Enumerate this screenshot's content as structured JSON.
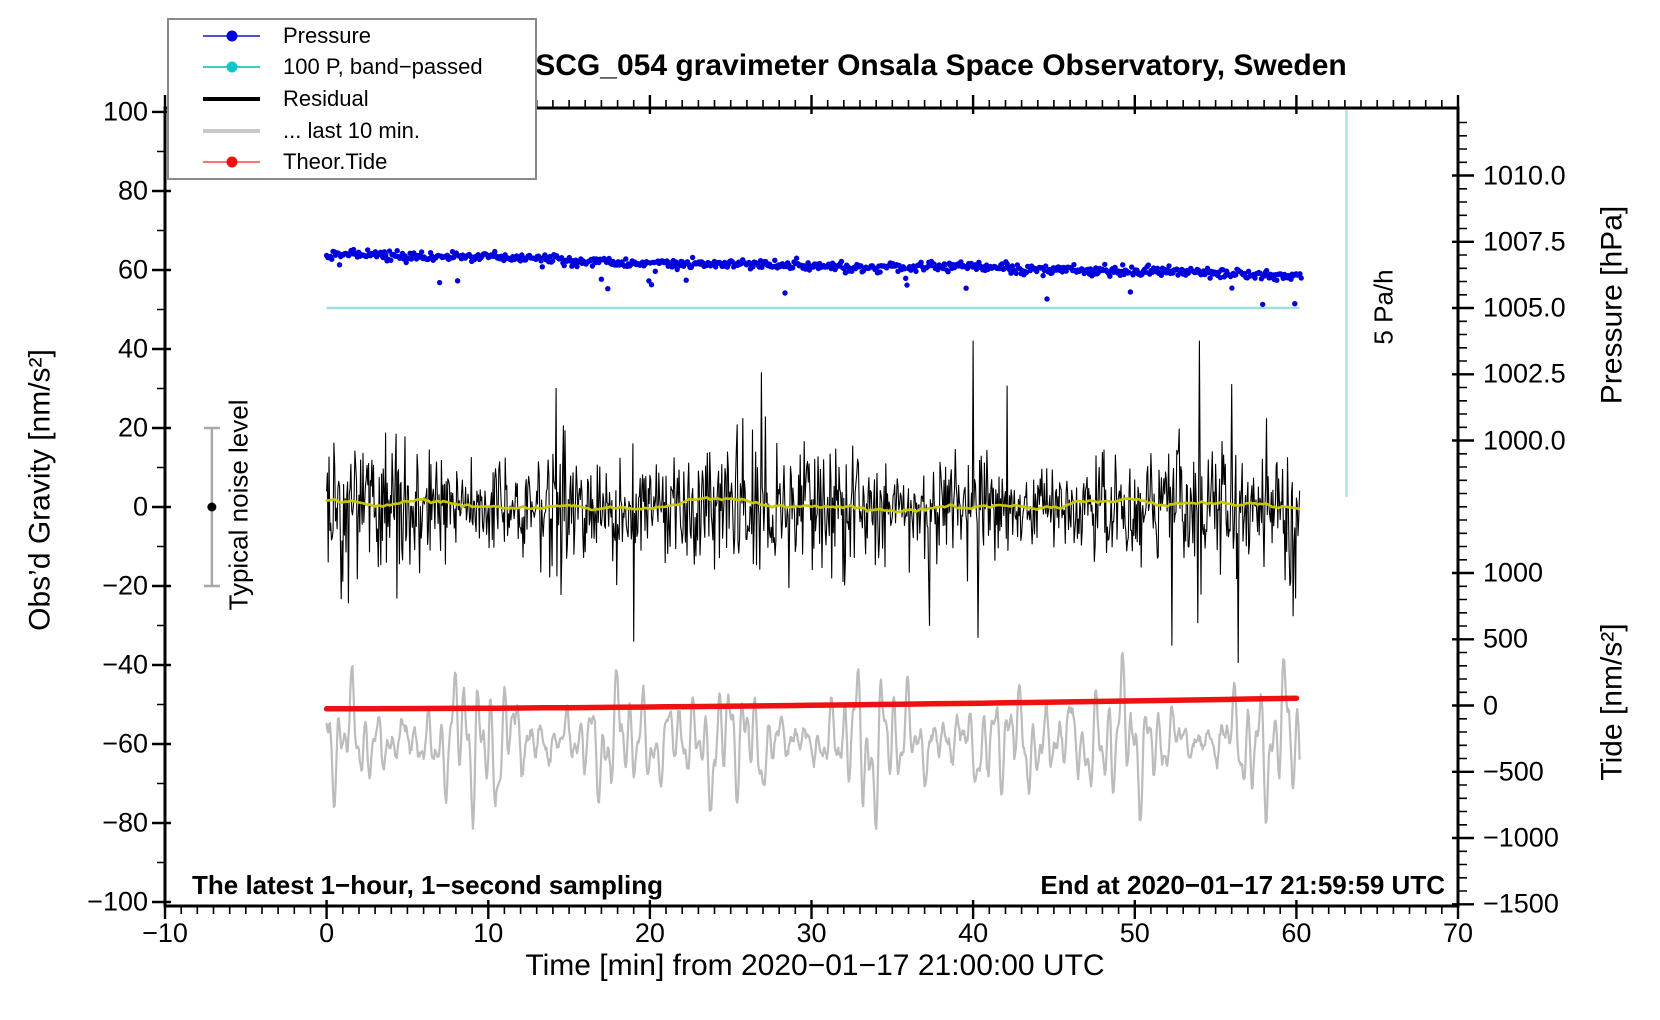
{
  "title": "SCG_054 gravimeter Onsala Space Observatory, Sweden",
  "legend": {
    "items": [
      {
        "label": "Pressure",
        "line_color": "#5050d0",
        "dot_color": "#0000dd",
        "line_width": 2
      },
      {
        "label": "100 P, band−passed",
        "line_color": "#3ecccc",
        "dot_color": "#10c8c8",
        "line_width": 2
      },
      {
        "label": "Residual",
        "line_color": "#000000",
        "dot_color": null,
        "line_width": 4
      },
      {
        "label": "... last 10 min.",
        "line_color": "#c8c8c8",
        "dot_color": null,
        "line_width": 4
      },
      {
        "label": "Theor.Tide",
        "line_color": "#ff7070",
        "dot_color": "#ee1111",
        "line_width": 2
      }
    ]
  },
  "axes": {
    "x": {
      "label": "Time [min] from 2020−01−17 21:00:00 UTC",
      "range": [
        -10,
        70
      ],
      "major_step": 10,
      "minor_step": 1,
      "tick_values": [
        -10,
        0,
        10,
        20,
        30,
        40,
        50,
        60,
        70
      ],
      "tick_labels": [
        "−10",
        "0",
        "10",
        "20",
        "30",
        "40",
        "50",
        "60",
        "70"
      ]
    },
    "gravity": {
      "label": "Obs’d Gravity [nm/s²]",
      "range": [
        -101,
        101
      ],
      "major_step": 20,
      "minor_step": 10,
      "tick_values": [
        100,
        80,
        60,
        40,
        20,
        0,
        -20,
        -40,
        -60,
        -80,
        -100
      ],
      "tick_labels": [
        "100",
        "80",
        "60",
        "40",
        "20",
        "0",
        "−20",
        "−40",
        "−60",
        "−80",
        "−100"
      ]
    },
    "pressure": {
      "label": "Pressure [hPa]",
      "tick_values": [
        1010.0,
        1007.5,
        1005.0,
        1002.5,
        1000.0
      ],
      "tick_labels": [
        "1010.0",
        "1007.5",
        "1005.0",
        "1002.5",
        "1000.0"
      ],
      "minor_step": 0.5,
      "minor_range": [
        997.5,
        1012.0
      ]
    },
    "tide": {
      "label": "Tide [nm/s²]",
      "tick_values": [
        1000,
        500,
        0,
        -500,
        -1000,
        -1500
      ],
      "tick_labels": [
        "1000",
        "500",
        "0",
        "−500",
        "−1000",
        "−1500"
      ],
      "minor_step": 100,
      "minor_range": [
        -1500,
        1500
      ]
    }
  },
  "annotations": {
    "sampling": "The latest 1−hour, 1−second sampling",
    "end_time": "End at 2020−01−17 21:59:59 UTC",
    "noise_bar_label": "Typical noise level",
    "rate_label": "5 Pa/h"
  },
  "chart_data": {
    "type": "line",
    "title": "SCG_054 gravimeter Onsala Space Observatory, Sweden",
    "xlabel": "Time [min] from 2020−01−17 21:00:00 UTC",
    "x_range_shown": [
      -10,
      70
    ],
    "data_time_span_min": [
      0,
      60.2
    ],
    "seed": 20200117,
    "series": [
      {
        "name": "Pressure",
        "type": "scatter",
        "axis": "pressure",
        "color": "#0000dd",
        "x_range": [
          0,
          60.3
        ],
        "start_hpa": 1007.0,
        "end_hpa": 1006.23,
        "noise_sd_hpa": 0.09,
        "outlier_rate": 0.025,
        "outlier_depth_hpa": [
          0.25,
          1.1
        ],
        "n_points": 760,
        "dot_radius": 2.7
      },
      {
        "name": "100 P, band−passed",
        "type": "hline",
        "axis": "pressure",
        "color": "#9fdfdf",
        "value_hpa": 1005.0,
        "x_range": [
          0,
          60.2
        ],
        "width": 2.5
      },
      {
        "name": "Residual",
        "type": "noise",
        "axis": "gravity",
        "color": "#000000",
        "mean": 0,
        "sigma": 7.2,
        "clamp": [
          -40,
          42
        ],
        "x_range": [
          0,
          60.2
        ],
        "step_min": 0.05,
        "spikes": [
          [
            14.2,
            30
          ],
          [
            19.0,
            -34
          ],
          [
            26.9,
            34
          ],
          [
            37.3,
            -30
          ],
          [
            40.0,
            42
          ],
          [
            40.3,
            -33
          ],
          [
            52.3,
            -35
          ],
          [
            56.0,
            31
          ]
        ]
      },
      {
        "name": "Residual running mean",
        "type": "smooth",
        "axis": "gravity",
        "color": "#c8c800",
        "mean": 0.5,
        "amp": 1.4,
        "x_range": [
          0,
          60.2
        ],
        "width": 2.6
      },
      {
        "name": "... last 10 min.",
        "type": "oscillation",
        "axis": "tide",
        "color": "#bcbcbc",
        "center": -270,
        "amp_base": 340,
        "clamp": [
          -1150,
          800
        ],
        "x_range": [
          0,
          60.2
        ],
        "width": 2.2
      },
      {
        "name": "Theor.Tide",
        "type": "curve",
        "axis": "tide",
        "color": "#ee1111",
        "start": -25,
        "end": 55,
        "exponent": 1.6,
        "x_range": [
          0,
          60.3
        ],
        "width": 5.5
      }
    ],
    "reference_marks": {
      "pressure_rate_bar": {
        "label": "5 Pa/h",
        "x_min": 63.1,
        "color": "#b4e4e4"
      },
      "noise_bar": {
        "label": "Typical noise level",
        "x_min": -7.1,
        "center": 0,
        "half_range": 20,
        "bar_color": "#a8a8a8",
        "dot_color": "#000000"
      }
    }
  }
}
